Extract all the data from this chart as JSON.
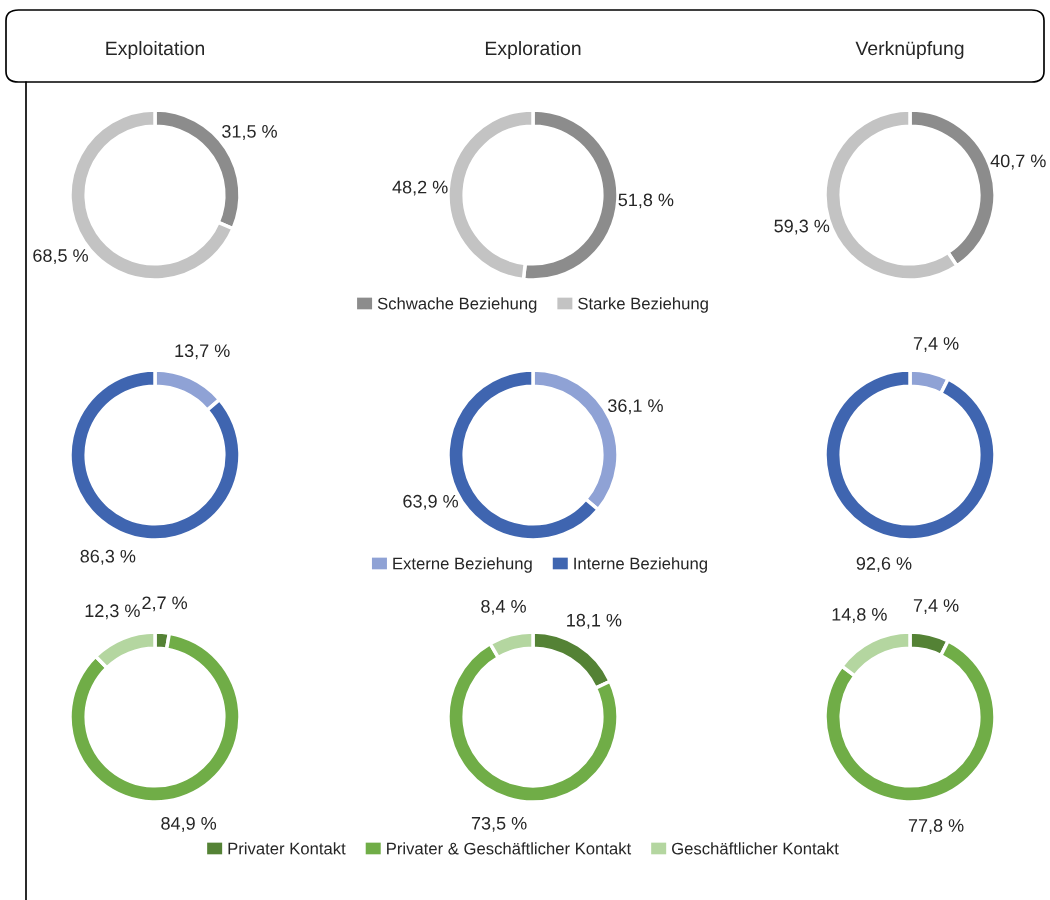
{
  "chart_data": [
    {
      "type": "donut",
      "title": "Exploitation",
      "categories": [
        "Schwache Beziehung",
        "Starke Beziehung"
      ],
      "values": [
        31.5,
        68.5
      ],
      "colors": [
        "#8c8c8c",
        "#c3c3c3"
      ],
      "value_labels": [
        "31,5 %",
        "68,5 %"
      ],
      "legend": "bottom"
    },
    {
      "type": "donut",
      "title": "Exploration",
      "categories": [
        null,
        null
      ],
      "values": [
        51.8,
        48.2
      ],
      "colors": [
        "#8c8c8c",
        "#c3c3c3"
      ],
      "value_labels": [
        "51,8 %",
        "48,2 %"
      ]
    },
    {
      "type": "donut",
      "title": "Verknüpfung",
      "categories": [
        null,
        null
      ],
      "values": [
        40.7,
        59.3
      ],
      "colors": [
        "#8c8c8c",
        "#c3c3c3"
      ],
      "value_labels": [
        "40,7 %",
        "59,3 %"
      ]
    },
    {
      "type": "donut",
      "categories": [
        "Externe Beziehung",
        "Interne Beziehung"
      ],
      "values": [
        13.7,
        86.3
      ],
      "colors": [
        "#8fa2d5",
        "#3f65b0"
      ],
      "value_labels": [
        "13,7 %",
        "86,3 %"
      ],
      "legend": "bottom"
    },
    {
      "type": "donut",
      "categories": [
        null,
        null
      ],
      "values": [
        36.1,
        63.9
      ],
      "colors": [
        "#8fa2d5",
        "#3f65b0"
      ],
      "value_labels": [
        "36,1 %",
        "63,9 %"
      ]
    },
    {
      "type": "donut",
      "categories": [
        null,
        null
      ],
      "values": [
        7.4,
        92.6
      ],
      "colors": [
        "#8fa2d5",
        "#3f65b0"
      ],
      "value_labels": [
        "7,4 %",
        "92,6 %"
      ]
    },
    {
      "type": "donut",
      "categories": [
        "Privater Kontakt",
        "Privater & Geschäftlicher Kontakt",
        "Geschäftlicher Kontakt"
      ],
      "values": [
        2.7,
        84.9,
        12.3
      ],
      "colors": [
        "#548235",
        "#70ad47",
        "#b4d6a0"
      ],
      "value_labels": [
        "2,7 %",
        "84,9 %",
        "12,3 %"
      ],
      "legend": "bottom"
    },
    {
      "type": "donut",
      "categories": [
        null,
        null,
        null
      ],
      "values": [
        18.1,
        73.5,
        8.4
      ],
      "colors": [
        "#548235",
        "#70ad47",
        "#b4d6a0"
      ],
      "value_labels": [
        "18,1 %",
        "73,5 %",
        "8,4 %"
      ]
    },
    {
      "type": "donut",
      "categories": [
        null,
        null,
        null
      ],
      "values": [
        7.4,
        77.8,
        14.8
      ],
      "colors": [
        "#548235",
        "#70ad47",
        "#b4d6a0"
      ],
      "value_labels": [
        "7,4 %",
        "77,8 %",
        "14,8 %"
      ]
    }
  ]
}
